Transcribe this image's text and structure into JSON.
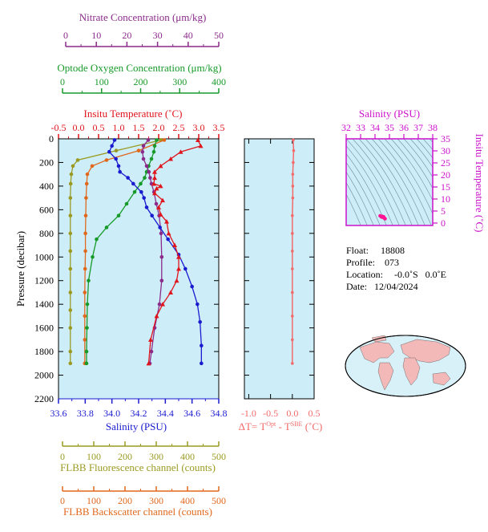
{
  "colors": {
    "nitrate": "#8b2a8b",
    "oxygen": "#179a2a",
    "temperature": "#e0141c",
    "salinity": "#1a1ad0",
    "fluorescence": "#9a9a22",
    "backscatter": "#e0681c",
    "delta_t": "#f26a6a",
    "ts_axis": "#cc11cc",
    "panel_bg": "#cdeef8"
  },
  "axes": {
    "nitrate": {
      "title": "Nitrate Concentration (μm/kg)",
      "ticks": [
        "0",
        "10",
        "20",
        "30",
        "40",
        "50"
      ]
    },
    "oxygen": {
      "title": "Optode Oxygen Concentration (μm/kg)",
      "ticks": [
        "0",
        "100",
        "200",
        "300",
        "400"
      ]
    },
    "temperature": {
      "title": "Insitu Temperature (˚C)",
      "ticks": [
        "-0.5",
        "0.0",
        "0.5",
        "1.0",
        "1.5",
        "2.0",
        "2.5",
        "3.0",
        "3.5"
      ]
    },
    "pressure": {
      "title": "Pressure (decibar)",
      "ticks": [
        "0",
        "200",
        "400",
        "600",
        "800",
        "1000",
        "1200",
        "1400",
        "1600",
        "1800",
        "2000",
        "2200"
      ]
    },
    "salinity": {
      "title": "Salinity (PSU)",
      "ticks": [
        "33.6",
        "33.8",
        "34.0",
        "34.2",
        "34.4",
        "34.6",
        "34.8"
      ]
    },
    "fluorescence": {
      "title": "FLBB Fluorescence channel (counts)",
      "ticks": [
        "0",
        "100",
        "200",
        "300",
        "400",
        "500"
      ]
    },
    "backscatter": {
      "title": "FLBB Backscatter channel (counts)",
      "ticks": [
        "0",
        "100",
        "200",
        "300",
        "400",
        "500"
      ]
    },
    "delta_t": {
      "title_prefix": "ΔT= T",
      "sup1": "Opt",
      "title_mid": " - T",
      "sup2": "SBE",
      "title_suffix": " (˚C)",
      "ticks": [
        "-1.0",
        "-0.5",
        "0.0",
        "0.5"
      ]
    },
    "ts_salinity": {
      "title": "Salinity (PSU)",
      "ticks": [
        "32",
        "33",
        "34",
        "35",
        "36",
        "37",
        "38"
      ]
    },
    "ts_temperature": {
      "title": "Insitu Temperature (˚C)",
      "ticks": [
        "0",
        "5",
        "10",
        "15",
        "20",
        "25",
        "30",
        "35"
      ]
    }
  },
  "info": {
    "float_label": "Float:",
    "float_value": "18808",
    "profile_label": "Profile:",
    "profile_value": "073",
    "location_label": "Location:",
    "location_value": "-0.0˚S   0.0˚E",
    "date_label": "Date:",
    "date_value": "12/04/2024"
  },
  "chart_data": [
    {
      "type": "line",
      "title": "",
      "ylabel": "Pressure (decibar)",
      "ylim": [
        2200,
        0
      ],
      "grid": false,
      "series": [
        {
          "name": "Insitu Temperature (˚C)",
          "xlim": [
            -0.5,
            3.5
          ],
          "marker": "triangle",
          "x": [
            2.98,
            3.05,
            2.55,
            2.3,
            2.05,
            1.9,
            1.9,
            1.88,
            2.05,
            1.95,
            1.9,
            2.1,
            2.0,
            2.05,
            2.2,
            2.25,
            2.4,
            2.5,
            2.5,
            2.45,
            2.3,
            2.1,
            1.95,
            1.8,
            1.75
          ],
          "y": [
            10,
            60,
            110,
            170,
            230,
            280,
            330,
            380,
            400,
            420,
            460,
            520,
            580,
            640,
            700,
            800,
            900,
            1000,
            1100,
            1200,
            1300,
            1400,
            1500,
            1700,
            1900
          ]
        },
        {
          "name": "Salinity (PSU)",
          "xlim": [
            33.6,
            34.8
          ],
          "marker": "circle",
          "x": [
            34.02,
            34.0,
            33.98,
            34.03,
            34.05,
            34.06,
            34.12,
            34.16,
            34.22,
            34.24,
            34.26,
            34.3,
            34.36,
            34.42,
            34.5,
            34.55,
            34.6,
            34.64,
            34.66,
            34.67,
            34.67
          ],
          "y": [
            10,
            60,
            110,
            170,
            230,
            280,
            330,
            380,
            450,
            500,
            580,
            650,
            750,
            850,
            980,
            1100,
            1250,
            1400,
            1550,
            1750,
            1900
          ]
        },
        {
          "name": "Nitrate Concentration (μm/kg)",
          "xlim": [
            0,
            50
          ],
          "marker": "circle",
          "x": [
            28,
            26.5,
            26.2,
            26.5,
            27.5,
            28.2,
            28.6,
            29,
            29.8,
            30.5,
            31.4,
            32,
            32.2,
            32.2,
            31.5,
            30,
            29,
            28.5
          ],
          "y": [
            10,
            60,
            110,
            170,
            230,
            280,
            330,
            380,
            450,
            550,
            650,
            800,
            1000,
            1200,
            1400,
            1600,
            1800,
            1900
          ]
        },
        {
          "name": "Optode Oxygen Concentration (μm/kg)",
          "xlim": [
            0,
            400
          ],
          "marker": "circle",
          "x": [
            245,
            240,
            238,
            232,
            225,
            220,
            215,
            205,
            190,
            170,
            150,
            120,
            95,
            85,
            75,
            72,
            71,
            70,
            70
          ],
          "y": [
            10,
            60,
            110,
            170,
            230,
            280,
            330,
            380,
            450,
            550,
            650,
            750,
            850,
            1000,
            1200,
            1400,
            1600,
            1800,
            1900
          ]
        },
        {
          "name": "FLBB Fluorescence channel (counts)",
          "xlim": [
            0,
            500
          ],
          "marker": "circle",
          "x": [
            320,
            180,
            60,
            45,
            40,
            38,
            37,
            37,
            37,
            37,
            37,
            37,
            37,
            37,
            37,
            37
          ],
          "y": [
            10,
            100,
            180,
            230,
            300,
            380,
            500,
            650,
            800,
            950,
            1100,
            1300,
            1450,
            1600,
            1800,
            1900
          ]
        },
        {
          "name": "FLBB Backscatter channel (counts)",
          "xlim": [
            0,
            500
          ],
          "marker": "circle",
          "x": [
            330,
            250,
            150,
            105,
            90,
            88,
            86,
            85,
            84,
            84,
            83,
            82,
            82,
            82,
            82
          ],
          "y": [
            10,
            100,
            180,
            230,
            300,
            380,
            500,
            650,
            800,
            950,
            1100,
            1300,
            1500,
            1700,
            1900
          ]
        }
      ]
    },
    {
      "type": "scatter",
      "xlabel": "ΔT= T(Opt) - T(SBE) (˚C)",
      "xlim": [
        -1.1,
        0.5
      ],
      "ylim": [
        2200,
        0
      ],
      "series": [
        {
          "name": "ΔT",
          "x": [
            0.02,
            0.03,
            0.02,
            0.01,
            0.01,
            0.01,
            0.0,
            0.0,
            0.0,
            0.0,
            0.0,
            0.0,
            0.0,
            0.0
          ],
          "y": [
            10,
            100,
            200,
            300,
            400,
            500,
            650,
            800,
            950,
            1100,
            1300,
            1500,
            1700,
            1900
          ]
        }
      ]
    },
    {
      "type": "scatter",
      "xlabel": "Salinity (PSU)",
      "ylabel": "Insitu Temperature (˚C)",
      "xlim": [
        32,
        38
      ],
      "ylim": [
        -1,
        35
      ],
      "series": [
        {
          "name": "T-S",
          "x": [
            34.35,
            34.45,
            34.55,
            34.62,
            34.66,
            34.67,
            34.7,
            34.5,
            34.6
          ],
          "y": [
            3.0,
            2.5,
            2.4,
            2.2,
            2.0,
            1.9,
            1.8,
            2.8,
            2.6
          ]
        }
      ]
    }
  ]
}
